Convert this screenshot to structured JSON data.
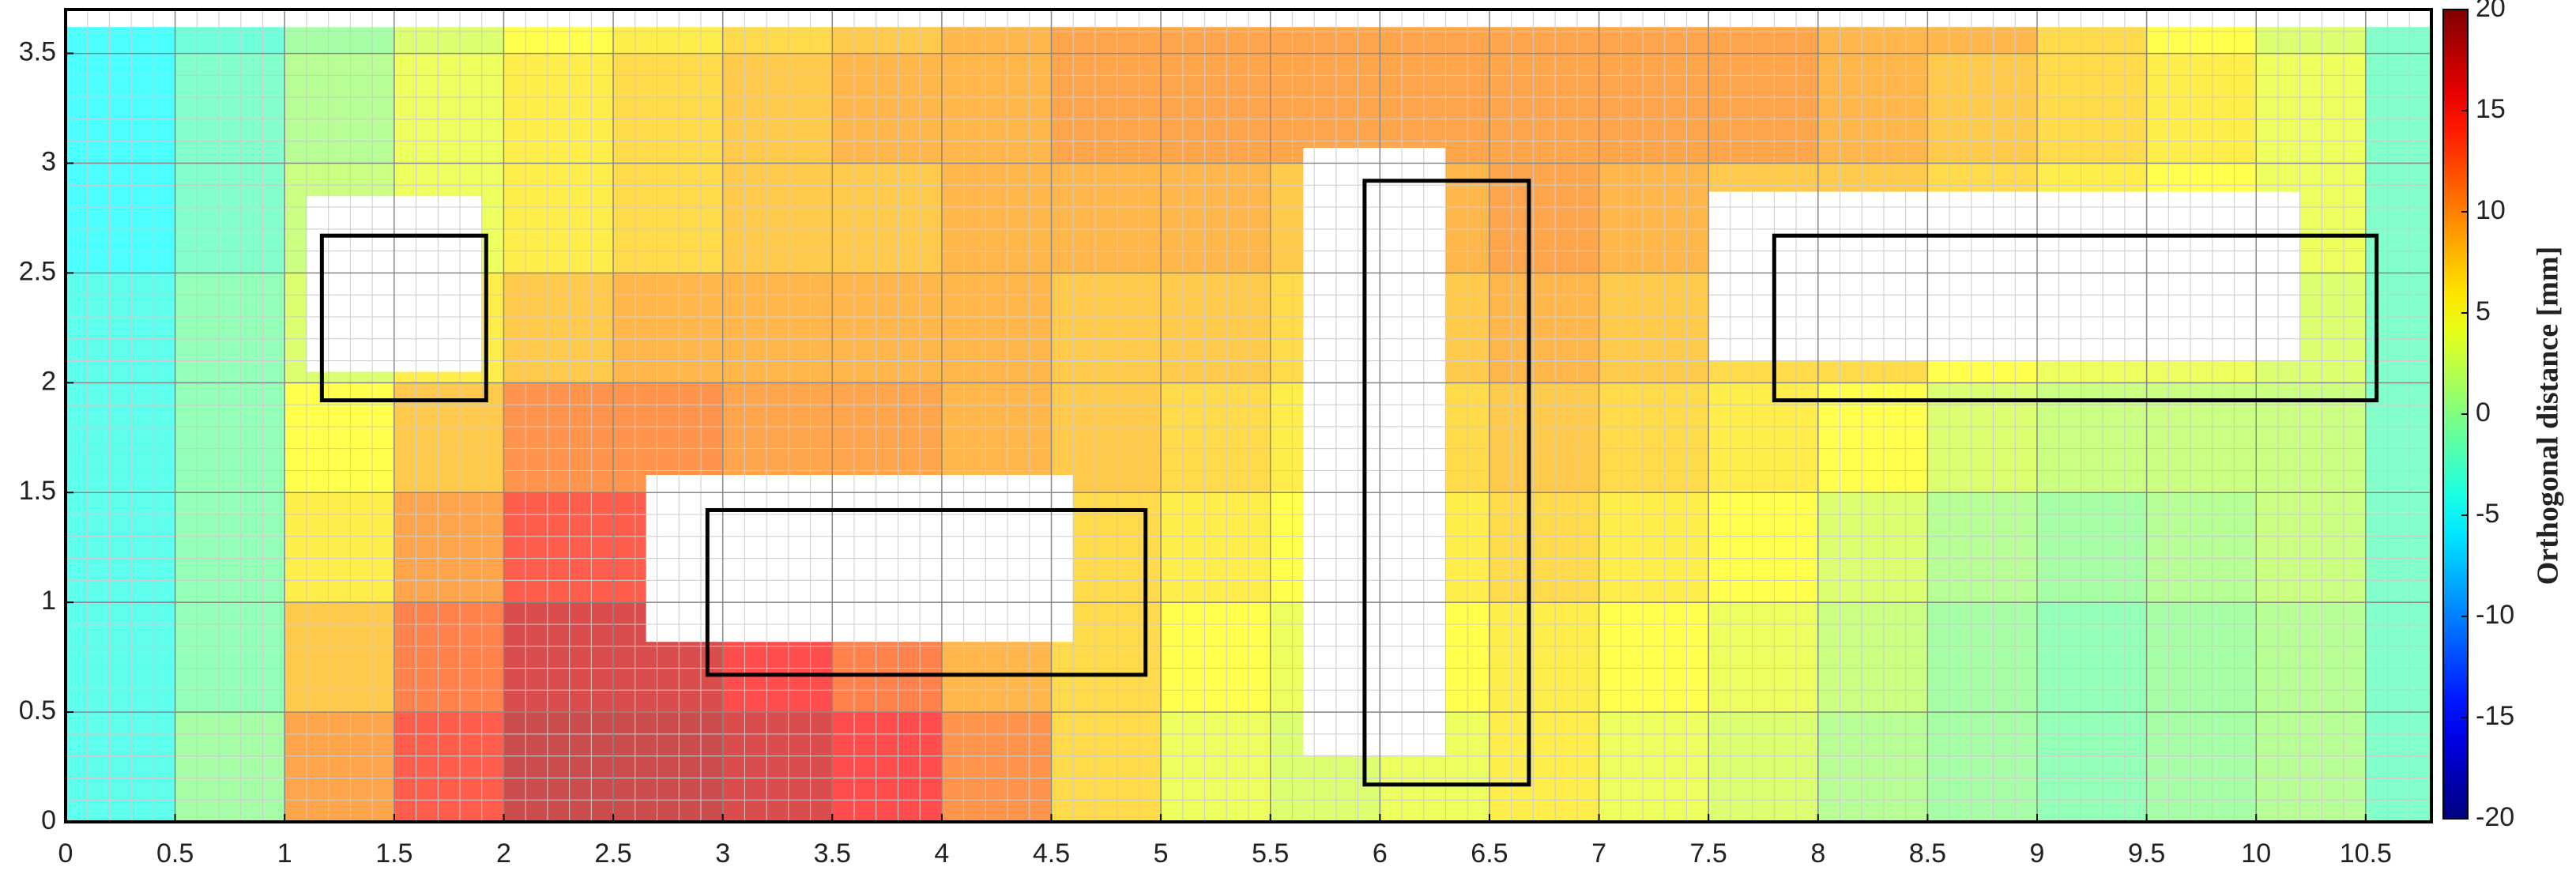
{
  "chart_data": {
    "type": "heatmap",
    "colormap": "jet",
    "colorbar_label": "Orthogonal distance [mm]",
    "clim": [
      -20,
      20
    ],
    "cticks": [
      -20,
      -15,
      -10,
      -5,
      0,
      5,
      10,
      15,
      20
    ],
    "xlim": [
      0,
      10.8
    ],
    "ylim": [
      0,
      3.7
    ],
    "xticks": [
      0,
      0.5,
      1,
      1.5,
      2,
      2.5,
      3,
      3.5,
      4,
      4.5,
      5,
      5.5,
      6,
      6.5,
      7,
      7.5,
      8,
      8.5,
      9,
      9.5,
      10,
      10.5
    ],
    "yticks": [
      0,
      0.5,
      1,
      1.5,
      2,
      2.5,
      3,
      3.5
    ],
    "grid": true,
    "minor_grid_step": 0.1,
    "x_edges": [
      0,
      0.5,
      1,
      1.5,
      2,
      2.5,
      3,
      3.5,
      4,
      4.5,
      5,
      5.5,
      6,
      6.5,
      7,
      7.5,
      8,
      8.5,
      9,
      9.5,
      10,
      10.5,
      10.85
    ],
    "y_edges": [
      0,
      0.5,
      1,
      1.5,
      2,
      2.5,
      3,
      3.5,
      3.62
    ],
    "z": [
      [
        -4,
        0,
        10,
        14,
        18,
        18,
        17,
        15,
        11,
        7,
        4,
        3,
        4,
        6,
        4,
        3,
        1,
        0,
        -1,
        0,
        1,
        -2
      ],
      [
        -4,
        -1,
        8,
        12,
        17,
        17,
        15,
        12,
        9,
        7,
        5,
        4,
        5,
        6,
        5,
        4,
        2,
        0,
        -1,
        0,
        1,
        -2
      ],
      [
        -4,
        -1,
        6,
        10,
        14,
        14,
        12,
        11,
        9,
        7,
        6,
        5,
        6,
        7,
        6,
        5,
        3,
        1,
        0,
        1,
        2,
        -2
      ],
      [
        -4,
        -1,
        5,
        8,
        11,
        11,
        10,
        10,
        9,
        8,
        7,
        6,
        7,
        8,
        7,
        6,
        5,
        3,
        2,
        2,
        2,
        -2
      ],
      [
        -4,
        -1,
        3,
        6,
        8,
        9,
        9,
        9,
        9,
        8,
        8,
        7,
        8,
        9,
        8,
        7,
        7,
        5,
        4,
        4,
        3,
        -2
      ],
      [
        -5,
        -2,
        2,
        4,
        6,
        7,
        8,
        8,
        9,
        9,
        9,
        8,
        9,
        10,
        9,
        8,
        8,
        7,
        6,
        5,
        4,
        -2
      ],
      [
        -5,
        -2,
        1,
        4,
        6,
        7,
        8,
        9,
        9,
        10,
        10,
        10,
        10,
        10,
        10,
        10,
        9,
        8,
        7,
        6,
        4,
        -2
      ],
      [
        -5,
        -3,
        0,
        3,
        5,
        6,
        7,
        8,
        9,
        10,
        10,
        10,
        10,
        10,
        10,
        10,
        9,
        9,
        7,
        5,
        3,
        -2
      ]
    ],
    "openings": [
      {
        "x": [
          1.1,
          1.9
        ],
        "y": [
          2.05,
          2.85
        ]
      },
      {
        "x": [
          2.65,
          4.6
        ],
        "y": [
          0.82,
          1.58
        ]
      },
      {
        "x": [
          5.65,
          6.3
        ],
        "y": [
          0.3,
          3.07
        ]
      },
      {
        "x": [
          7.5,
          10.2
        ],
        "y": [
          2.1,
          2.87
        ]
      }
    ],
    "outlines": [
      {
        "x": [
          1.17,
          1.92
        ],
        "y": [
          1.92,
          2.67
        ]
      },
      {
        "x": [
          2.93,
          4.93
        ],
        "y": [
          0.67,
          1.42
        ]
      },
      {
        "x": [
          5.93,
          6.68
        ],
        "y": [
          0.17,
          2.92
        ]
      },
      {
        "x": [
          7.8,
          10.55
        ],
        "y": [
          1.92,
          2.67
        ]
      }
    ]
  }
}
